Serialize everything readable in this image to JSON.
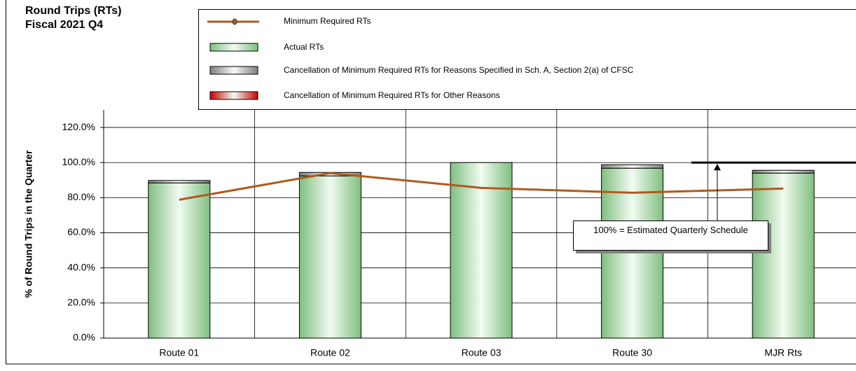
{
  "chart_data": {
    "type": "bar",
    "title": "Round Trips (RTs)",
    "subtitle": "Fiscal 2021 Q4",
    "y_label": "% of Round Trips in the Quarter",
    "annotation": "100% = Estimated Quarterly Schedule",
    "annotation_line_value": 100,
    "categories": [
      "Route 01",
      "Route 02",
      "Route 03",
      "Route 30",
      "MJR Rts"
    ],
    "series": [
      {
        "name": "Minimum Required RTs",
        "type": "line",
        "color": "#b05a1e",
        "values": [
          78.8,
          94.0,
          85.6,
          82.8,
          85.2
        ]
      },
      {
        "name": "Actual RTs",
        "type": "bar",
        "color": "#7fbf7f",
        "values": [
          88.4,
          92.4,
          100.0,
          96.8,
          94.0
        ]
      },
      {
        "name": "Cancellation of Minimum Required RTs for Reasons Specified in Sch. A, Section 2(a) of CFSC",
        "type": "bar",
        "color": "#808080",
        "values": [
          1.4,
          2.0,
          0.0,
          2.0,
          1.6
        ]
      },
      {
        "name": "Cancellation of Minimum Required RTs for Other Reasons",
        "type": "bar",
        "color": "#cc0000",
        "values": [
          0,
          0,
          0,
          0,
          0
        ]
      }
    ],
    "ylim": [
      0,
      130
    ],
    "yticks": [
      {
        "value": 0,
        "label": "0.0%"
      },
      {
        "value": 20,
        "label": "20.0%"
      },
      {
        "value": 40,
        "label": "40.0%"
      },
      {
        "value": 60,
        "label": "60.0%"
      },
      {
        "value": 80,
        "label": "80.0%"
      },
      {
        "value": 100,
        "label": "100.0%"
      },
      {
        "value": 120,
        "label": "120.0%"
      }
    ],
    "grid": true
  }
}
